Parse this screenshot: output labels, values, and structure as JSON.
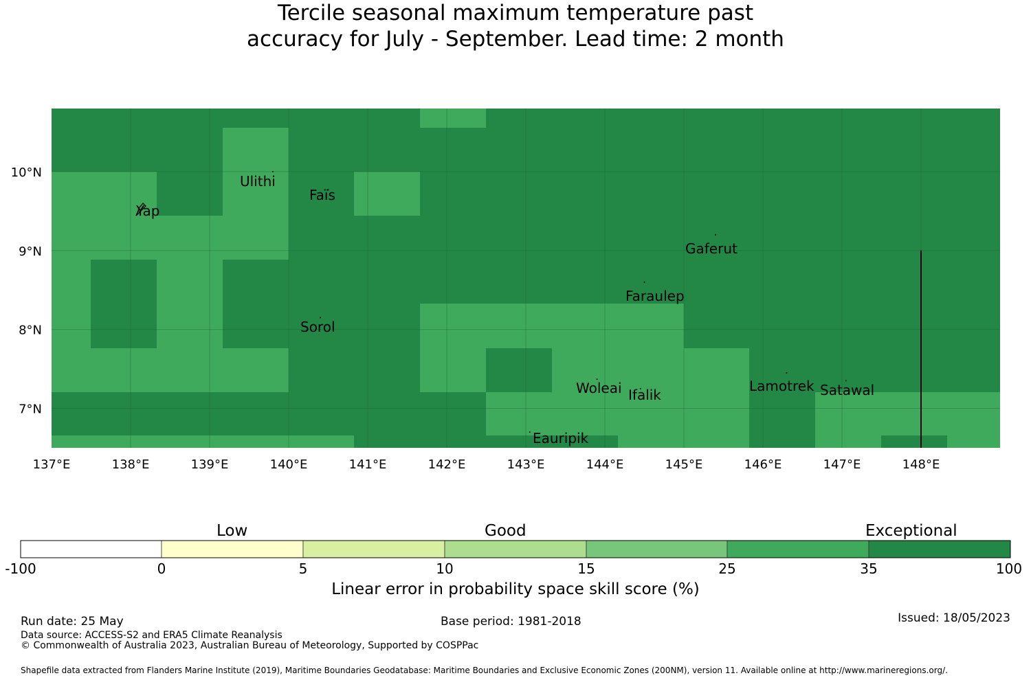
{
  "title": {
    "line1": "Tercile seasonal maximum temperature past",
    "line2": "accuracy for July - September. Lead time: 2 month"
  },
  "colors": {
    "c25_35": "#3fa95c",
    "c35_100": "#238846",
    "gridline": "#1a5e30",
    "boundary": "#000000"
  },
  "map": {
    "lon_range": [
      137,
      149
    ],
    "lat_range": [
      6.5,
      10.8
    ],
    "lon_ticks": [
      "137°E",
      "138°E",
      "139°E",
      "140°E",
      "141°E",
      "142°E",
      "143°E",
      "144°E",
      "145°E",
      "146°E",
      "147°E",
      "148°E"
    ],
    "lat_ticks": [
      "10°N",
      "9°N",
      "8°N",
      "7°N"
    ],
    "islands": [
      {
        "name": "Ulithi",
        "lon": 139.8,
        "lat": 10.0
      },
      {
        "name": "Faïs",
        "lon": 140.5,
        "lat": 9.77
      },
      {
        "name": "Yap",
        "lon": 138.1,
        "lat": 9.5
      },
      {
        "name": "Gaferut",
        "lon": 145.4,
        "lat": 9.2
      },
      {
        "name": "Faraulep",
        "lon": 144.5,
        "lat": 8.6
      },
      {
        "name": "Sorol",
        "lon": 140.4,
        "lat": 8.15
      },
      {
        "name": "Woleai",
        "lon": 143.9,
        "lat": 7.37
      },
      {
        "name": "Ifalik",
        "lon": 144.45,
        "lat": 7.25
      },
      {
        "name": "Lamotrek",
        "lon": 146.3,
        "lat": 7.45
      },
      {
        "name": "Satawal",
        "lon": 147.05,
        "lat": 7.35
      },
      {
        "name": "Eauripik",
        "lon": 143.05,
        "lat": 6.7
      }
    ]
  },
  "colorbar": {
    "categories": [
      "Low",
      "Good",
      "Exceptional"
    ],
    "ticks": [
      "-100",
      "0",
      "5",
      "10",
      "15",
      "25",
      "35",
      "100"
    ],
    "colors": [
      "#ffffff",
      "#ffffcc",
      "#d9f0a3",
      "#addd8e",
      "#78c679",
      "#3fa95c",
      "#238846"
    ],
    "label": "Linear error in probability space skill score (%)"
  },
  "footer": {
    "run_date": "Run date: 25 May",
    "base_period": "Base period: 1981-2018",
    "issued": "Issued: 18/05/2023",
    "data_source": "Data source: ACCESS-S2 and ERA5 Climate Reanalysis",
    "copyright": "© Commonwealth of Australia 2023, Australian Bureau of Meteorology, Supported by COSPPac",
    "shapefile": "Shapefile data extracted from Flanders Marine Institute (2019), Maritime Boundaries Geodatabase: Maritime Boundaries and Exclusive Economic Zones (200NM), version 11. Available online at http://www.marineregions.org/."
  }
}
